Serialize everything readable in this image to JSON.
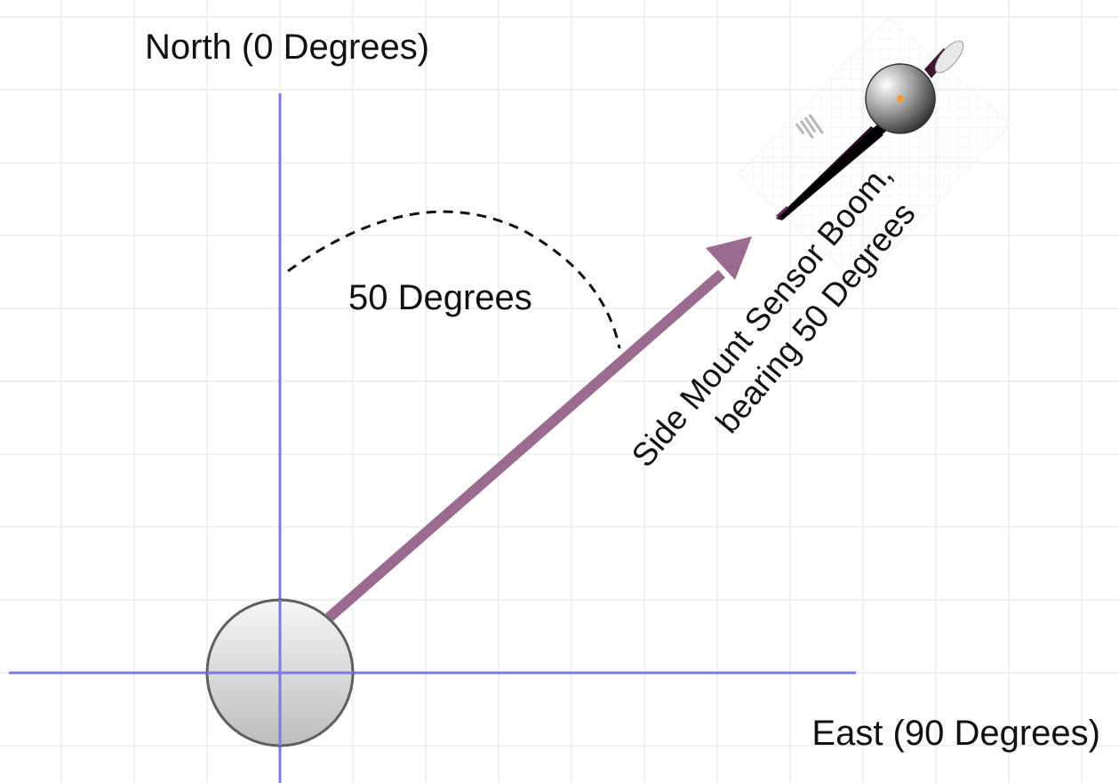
{
  "labels": {
    "north": "North (0 Degrees)",
    "east": "East (90 Degrees)",
    "angle": "50 Degrees",
    "boom_line1": "Side Mount Sensor Boom,",
    "boom_line2": "bearing 50 Degrees"
  },
  "bearing_degrees": 50,
  "colors": {
    "axis": "#7b7be6",
    "arrow": "#9b6b8f",
    "grid": "#e6e6e6",
    "hub_edge": "#5f5f5f",
    "boom_dark": "#2a0f22",
    "sensor_dot": "#f39a2a"
  }
}
